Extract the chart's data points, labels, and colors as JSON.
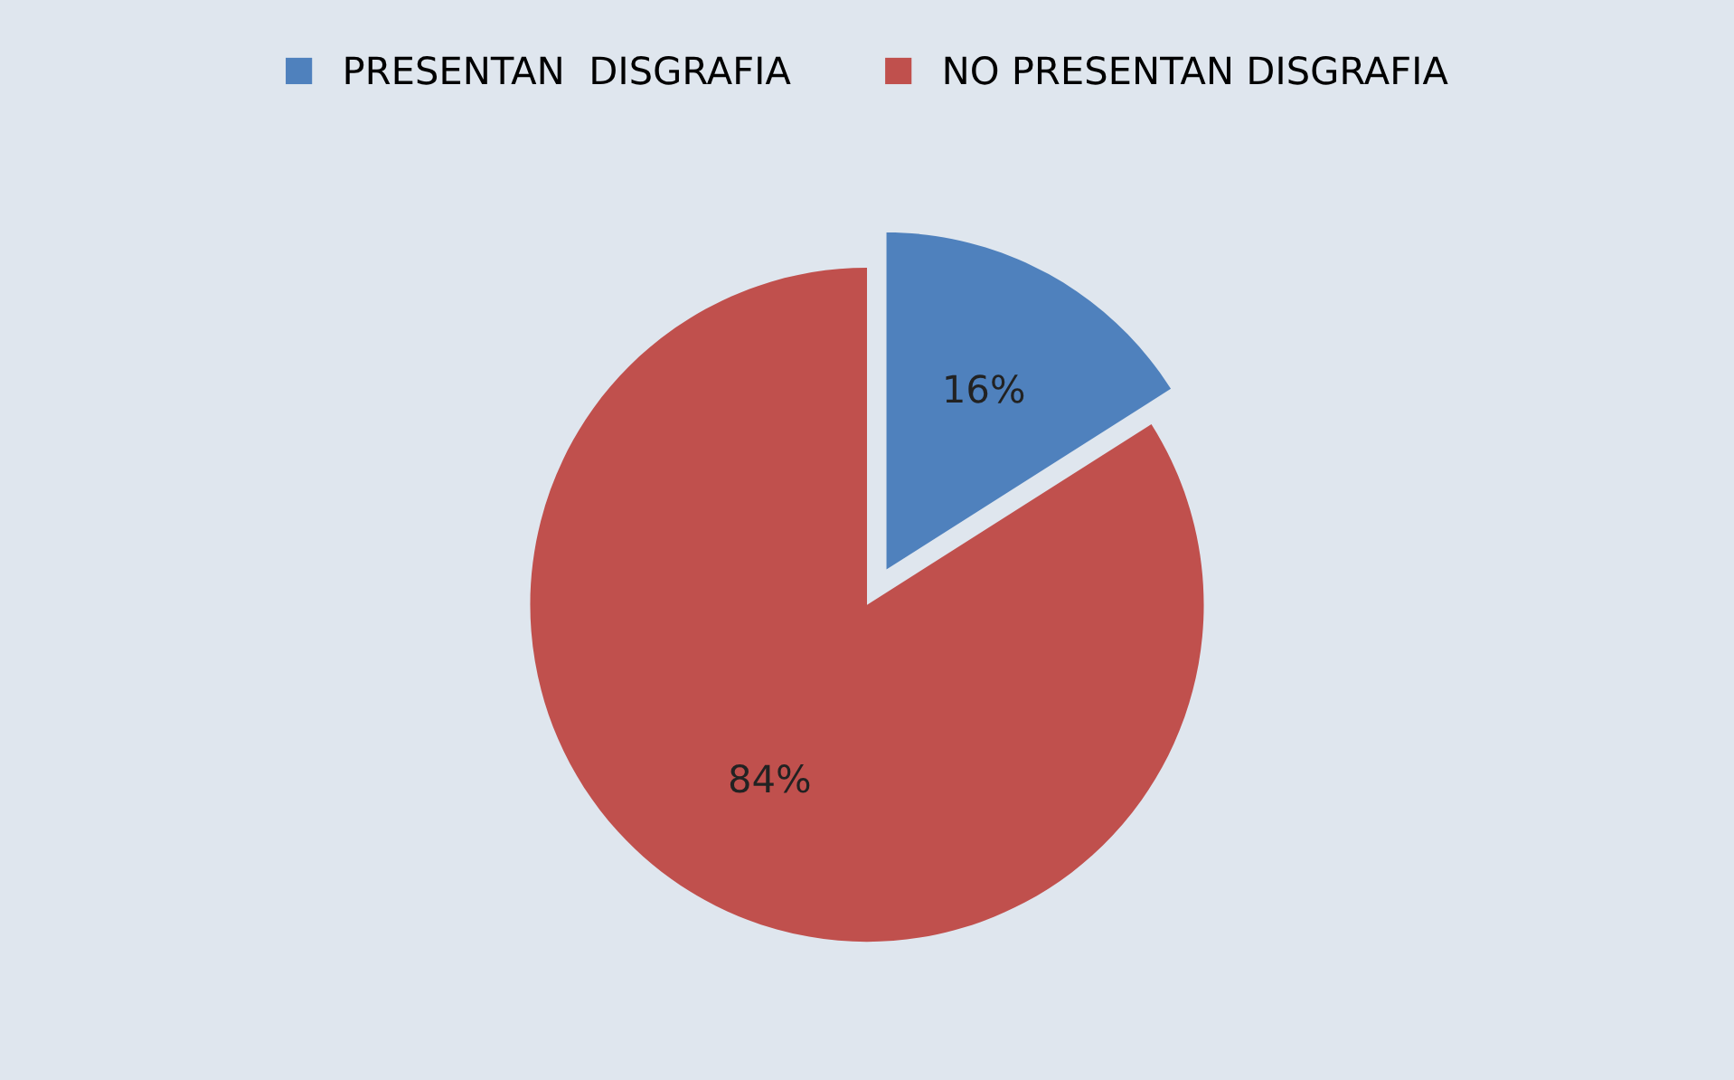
{
  "chart_data": {
    "type": "pie",
    "categories": [
      "PRESENTAN  DISGRAFIA",
      "NO PRESENTAN DISGRAFIA"
    ],
    "values": [
      16,
      84
    ],
    "colors": [
      "#4f81bd",
      "#c0504d"
    ],
    "value_labels": [
      "16%",
      "84%"
    ],
    "legend": "top"
  }
}
